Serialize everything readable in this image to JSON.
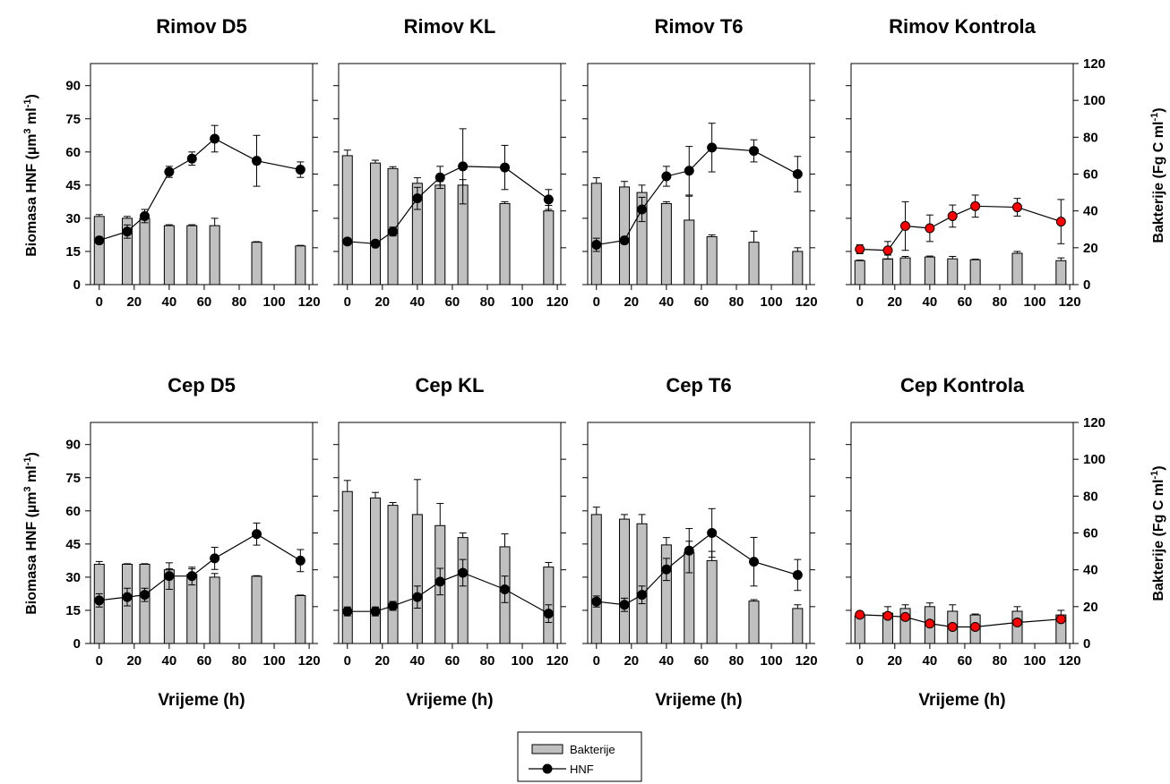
{
  "figure": {
    "left_axis_label": {
      "prefix": "Biomasa HNF (µm",
      "sup1": "3",
      "mid": " ml",
      "sup2": "-1",
      "suffix": ")"
    },
    "right_axis_label": {
      "prefix": "Bakterije (Fg C ml",
      "sup": "-1",
      "suffix": ")"
    },
    "legend": {
      "bacteria_label": "Bakterije",
      "hnf_label": "HNF"
    },
    "colors": {
      "bar_fill": "#c0c0c0",
      "hnf_marker_dark": "#000000",
      "hnf_marker_red": "#ff0000"
    }
  },
  "chart_data": [
    {
      "title": "Rimov D5",
      "type": "bar+line",
      "xlabel": "",
      "x_ticks": [
        0,
        20,
        40,
        60,
        80,
        100,
        120
      ],
      "xlim": [
        -5,
        122
      ],
      "left_ylim": [
        0,
        100
      ],
      "left_ticks": [
        0,
        15,
        30,
        45,
        60,
        75,
        90
      ],
      "right_ylim": [
        0,
        120
      ],
      "right_ticks": [
        0,
        20,
        40,
        60,
        80,
        100,
        120
      ],
      "show_left_ticks": true,
      "show_right_ticks": false,
      "marker_color": "#000000",
      "bacteria": [
        {
          "x": 0,
          "y": 37,
          "err": 1
        },
        {
          "x": 16,
          "y": 36,
          "err": 1
        },
        {
          "x": 26,
          "y": 36,
          "err": 1
        },
        {
          "x": 40,
          "y": 32,
          "err": 0.5
        },
        {
          "x": 53,
          "y": 32,
          "err": 0.5
        },
        {
          "x": 66,
          "y": 32,
          "err": 4
        },
        {
          "x": 90,
          "y": 23,
          "err": 0.3
        },
        {
          "x": 115,
          "y": 21,
          "err": 0.3
        }
      ],
      "hnf": [
        {
          "x": 0,
          "y": 20,
          "err": 1.5
        },
        {
          "x": 16,
          "y": 24,
          "err": 3
        },
        {
          "x": 26,
          "y": 31,
          "err": 3
        },
        {
          "x": 40,
          "y": 51,
          "err": 2.5
        },
        {
          "x": 53,
          "y": 57,
          "err": 3
        },
        {
          "x": 66,
          "y": 66,
          "err": 6
        },
        {
          "x": 90,
          "y": 56,
          "err": 11.5
        },
        {
          "x": 115,
          "y": 52,
          "err": 3.5
        }
      ]
    },
    {
      "title": "Rimov KL",
      "type": "bar+line",
      "xlabel": "",
      "x_ticks": [
        0,
        20,
        40,
        60,
        80,
        100,
        120
      ],
      "xlim": [
        -5,
        122
      ],
      "left_ylim": [
        0,
        100
      ],
      "left_ticks": [
        0,
        15,
        30,
        45,
        60,
        75,
        90
      ],
      "right_ylim": [
        0,
        120
      ],
      "right_ticks": [
        0,
        20,
        40,
        60,
        80,
        100,
        120
      ],
      "show_left_ticks": false,
      "show_right_ticks": false,
      "marker_color": "#000000",
      "bacteria": [
        {
          "x": 0,
          "y": 70,
          "err": 3
        },
        {
          "x": 16,
          "y": 66,
          "err": 1.5
        },
        {
          "x": 26,
          "y": 63,
          "err": 1
        },
        {
          "x": 40,
          "y": 55,
          "err": 3
        },
        {
          "x": 53,
          "y": 54,
          "err": 2
        },
        {
          "x": 66,
          "y": 54,
          "err": 3
        },
        {
          "x": 90,
          "y": 44,
          "err": 1
        },
        {
          "x": 115,
          "y": 40,
          "err": 3
        }
      ],
      "hnf": [
        {
          "x": 0,
          "y": 19.5,
          "err": 0.3
        },
        {
          "x": 16,
          "y": 18.5,
          "err": 0.3
        },
        {
          "x": 26,
          "y": 24,
          "err": 2
        },
        {
          "x": 40,
          "y": 39,
          "err": 5
        },
        {
          "x": 53,
          "y": 48.5,
          "err": 5
        },
        {
          "x": 66,
          "y": 53.5,
          "err": 17
        },
        {
          "x": 90,
          "y": 53,
          "err": 10
        },
        {
          "x": 115,
          "y": 38.5,
          "err": 4.5
        }
      ]
    },
    {
      "title": "Rimov T6",
      "type": "bar+line",
      "xlabel": "",
      "x_ticks": [
        0,
        20,
        40,
        60,
        80,
        100,
        120
      ],
      "xlim": [
        -5,
        122
      ],
      "left_ylim": [
        0,
        100
      ],
      "left_ticks": [
        0,
        15,
        30,
        45,
        60,
        75,
        90
      ],
      "right_ylim": [
        0,
        120
      ],
      "right_ticks": [
        0,
        20,
        40,
        60,
        80,
        100,
        120
      ],
      "show_left_ticks": false,
      "show_right_ticks": false,
      "marker_color": "#000000",
      "bacteria": [
        {
          "x": 0,
          "y": 55,
          "err": 3
        },
        {
          "x": 16,
          "y": 53,
          "err": 3
        },
        {
          "x": 26,
          "y": 50,
          "err": 4
        },
        {
          "x": 40,
          "y": 44,
          "err": 1
        },
        {
          "x": 53,
          "y": 35,
          "err": 13
        },
        {
          "x": 66,
          "y": 26,
          "err": 1
        },
        {
          "x": 90,
          "y": 23,
          "err": 6
        },
        {
          "x": 115,
          "y": 18,
          "err": 2
        }
      ],
      "hnf": [
        {
          "x": 0,
          "y": 18,
          "err": 3
        },
        {
          "x": 16,
          "y": 20,
          "err": 1.5
        },
        {
          "x": 26,
          "y": 34,
          "err": 5.5
        },
        {
          "x": 40,
          "y": 49,
          "err": 4.5
        },
        {
          "x": 53,
          "y": 51.5,
          "err": 11
        },
        {
          "x": 66,
          "y": 62,
          "err": 11
        },
        {
          "x": 90,
          "y": 60.5,
          "err": 5
        },
        {
          "x": 115,
          "y": 50,
          "err": 8
        }
      ]
    },
    {
      "title": "Rimov Kontrola",
      "type": "bar+line",
      "xlabel": "",
      "x_ticks": [
        0,
        20,
        40,
        60,
        80,
        100,
        120
      ],
      "xlim": [
        -5,
        122
      ],
      "left_ylim": [
        0,
        100
      ],
      "left_ticks": [
        0,
        15,
        30,
        45,
        60,
        75,
        90
      ],
      "right_ylim": [
        0,
        120
      ],
      "right_ticks": [
        0,
        20,
        40,
        60,
        80,
        100,
        120
      ],
      "show_left_ticks": false,
      "show_right_ticks": true,
      "marker_color": "#ff0000",
      "bacteria": [
        {
          "x": 0,
          "y": 13,
          "err": 0.3
        },
        {
          "x": 16,
          "y": 14,
          "err": 2
        },
        {
          "x": 26,
          "y": 14.5,
          "err": 0.8
        },
        {
          "x": 40,
          "y": 15,
          "err": 0.5
        },
        {
          "x": 53,
          "y": 14,
          "err": 1.3
        },
        {
          "x": 66,
          "y": 13.5,
          "err": 0.3
        },
        {
          "x": 90,
          "y": 17,
          "err": 1
        },
        {
          "x": 115,
          "y": 13,
          "err": 1.5
        }
      ],
      "hnf": [
        {
          "x": 0,
          "y": 16,
          "err": 2
        },
        {
          "x": 16,
          "y": 15.5,
          "err": 4
        },
        {
          "x": 26,
          "y": 26.5,
          "err": 11
        },
        {
          "x": 40,
          "y": 25.5,
          "err": 6
        },
        {
          "x": 53,
          "y": 31,
          "err": 5
        },
        {
          "x": 66,
          "y": 35.5,
          "err": 5
        },
        {
          "x": 90,
          "y": 35,
          "err": 4
        },
        {
          "x": 115,
          "y": 28.5,
          "err": 10
        }
      ]
    },
    {
      "title": "Cep  D5",
      "type": "bar+line",
      "xlabel": "Vrijeme (h)",
      "x_ticks": [
        0,
        20,
        40,
        60,
        80,
        100,
        120
      ],
      "xlim": [
        -5,
        122
      ],
      "left_ylim": [
        0,
        100
      ],
      "left_ticks": [
        0,
        15,
        30,
        45,
        60,
        75,
        90
      ],
      "right_ylim": [
        0,
        120
      ],
      "right_ticks": [
        0,
        20,
        40,
        60,
        80,
        100,
        120
      ],
      "show_left_ticks": true,
      "show_right_ticks": false,
      "marker_color": "#000000",
      "bacteria": [
        {
          "x": 0,
          "y": 43,
          "err": 1.5
        },
        {
          "x": 16,
          "y": 43,
          "err": 0.3
        },
        {
          "x": 26,
          "y": 43,
          "err": 0.3
        },
        {
          "x": 40,
          "y": 40,
          "err": 0.5
        },
        {
          "x": 53,
          "y": 37.5,
          "err": 3
        },
        {
          "x": 66,
          "y": 36,
          "err": 2
        },
        {
          "x": 90,
          "y": 36.5,
          "err": 0.3
        },
        {
          "x": 115,
          "y": 26,
          "err": 0.3
        }
      ],
      "hnf": [
        {
          "x": 0,
          "y": 19.5,
          "err": 3
        },
        {
          "x": 16,
          "y": 21,
          "err": 4
        },
        {
          "x": 26,
          "y": 22,
          "err": 3
        },
        {
          "x": 40,
          "y": 30.5,
          "err": 6
        },
        {
          "x": 53,
          "y": 30.5,
          "err": 4
        },
        {
          "x": 66,
          "y": 38.5,
          "err": 5
        },
        {
          "x": 90,
          "y": 49.5,
          "err": 5
        },
        {
          "x": 115,
          "y": 37.5,
          "err": 5
        }
      ]
    },
    {
      "title": "Cep KL",
      "type": "bar+line",
      "xlabel": "Vrijeme (h)",
      "x_ticks": [
        0,
        20,
        40,
        60,
        80,
        100,
        120
      ],
      "xlim": [
        -5,
        122
      ],
      "left_ylim": [
        0,
        100
      ],
      "left_ticks": [
        0,
        15,
        30,
        45,
        60,
        75,
        90
      ],
      "right_ylim": [
        0,
        120
      ],
      "right_ticks": [
        0,
        20,
        40,
        60,
        80,
        100,
        120
      ],
      "show_left_ticks": false,
      "show_right_ticks": false,
      "marker_color": "#000000",
      "bacteria": [
        {
          "x": 0,
          "y": 82.5,
          "err": 6
        },
        {
          "x": 16,
          "y": 79,
          "err": 3
        },
        {
          "x": 26,
          "y": 75,
          "err": 1.5
        },
        {
          "x": 40,
          "y": 70,
          "err": 19
        },
        {
          "x": 53,
          "y": 64,
          "err": 12
        },
        {
          "x": 66,
          "y": 57.5,
          "err": 2.5
        },
        {
          "x": 90,
          "y": 52.5,
          "err": 7
        },
        {
          "x": 115,
          "y": 41.5,
          "err": 2.5
        }
      ],
      "hnf": [
        {
          "x": 0,
          "y": 14.5,
          "err": 2
        },
        {
          "x": 16,
          "y": 14.5,
          "err": 2
        },
        {
          "x": 26,
          "y": 17,
          "err": 2
        },
        {
          "x": 40,
          "y": 21,
          "err": 5
        },
        {
          "x": 53,
          "y": 28,
          "err": 6
        },
        {
          "x": 66,
          "y": 32,
          "err": 6
        },
        {
          "x": 90,
          "y": 24.5,
          "err": 6
        },
        {
          "x": 115,
          "y": 13.5,
          "err": 4
        }
      ]
    },
    {
      "title": "Cep T6",
      "type": "bar+line",
      "xlabel": "Vrijeme (h)",
      "x_ticks": [
        0,
        20,
        40,
        60,
        80,
        100,
        120
      ],
      "xlim": [
        -5,
        122
      ],
      "left_ylim": [
        0,
        100
      ],
      "left_ticks": [
        0,
        15,
        30,
        45,
        60,
        75,
        90
      ],
      "right_ylim": [
        0,
        120
      ],
      "right_ticks": [
        0,
        20,
        40,
        60,
        80,
        100,
        120
      ],
      "show_left_ticks": false,
      "show_right_ticks": false,
      "marker_color": "#000000",
      "bacteria": [
        {
          "x": 0,
          "y": 70,
          "err": 4
        },
        {
          "x": 16,
          "y": 67.5,
          "err": 2.5
        },
        {
          "x": 26,
          "y": 65,
          "err": 5
        },
        {
          "x": 40,
          "y": 53.5,
          "err": 4
        },
        {
          "x": 53,
          "y": 49.5,
          "err": 6
        },
        {
          "x": 66,
          "y": 45,
          "err": 5
        },
        {
          "x": 90,
          "y": 23,
          "err": 0.8
        },
        {
          "x": 115,
          "y": 19,
          "err": 2
        }
      ],
      "hnf": [
        {
          "x": 0,
          "y": 19,
          "err": 2.5
        },
        {
          "x": 16,
          "y": 17.5,
          "err": 3
        },
        {
          "x": 26,
          "y": 22,
          "err": 4
        },
        {
          "x": 40,
          "y": 33.5,
          "err": 5
        },
        {
          "x": 53,
          "y": 42,
          "err": 10
        },
        {
          "x": 66,
          "y": 50,
          "err": 11
        },
        {
          "x": 90,
          "y": 37,
          "err": 11
        },
        {
          "x": 115,
          "y": 31,
          "err": 7
        }
      ]
    },
    {
      "title": "Cep Kontrola",
      "type": "bar+line",
      "xlabel": "Vrijeme (h)",
      "x_ticks": [
        0,
        20,
        40,
        60,
        80,
        100,
        120
      ],
      "xlim": [
        -5,
        122
      ],
      "left_ylim": [
        0,
        100
      ],
      "left_ticks": [
        0,
        15,
        30,
        45,
        60,
        75,
        90
      ],
      "right_ylim": [
        0,
        120
      ],
      "right_ticks": [
        0,
        20,
        40,
        60,
        80,
        100,
        120
      ],
      "show_left_ticks": false,
      "show_right_ticks": true,
      "marker_color": "#ff0000",
      "bacteria": [
        {
          "x": 0,
          "y": 15,
          "err": 2
        },
        {
          "x": 16,
          "y": 16.5,
          "err": 3.5
        },
        {
          "x": 26,
          "y": 19,
          "err": 2
        },
        {
          "x": 40,
          "y": 20,
          "err": 2
        },
        {
          "x": 53,
          "y": 17.5,
          "err": 3.5
        },
        {
          "x": 66,
          "y": 15.5,
          "err": 0.5
        },
        {
          "x": 90,
          "y": 17.5,
          "err": 2.5
        },
        {
          "x": 115,
          "y": 15.5,
          "err": 2.5
        }
      ],
      "hnf": [
        {
          "x": 0,
          "y": 13,
          "err": 0.5
        },
        {
          "x": 16,
          "y": 12.5,
          "err": 0.5
        },
        {
          "x": 26,
          "y": 12,
          "err": 0.5
        },
        {
          "x": 40,
          "y": 9,
          "err": 0.5
        },
        {
          "x": 53,
          "y": 7.5,
          "err": 0.5
        },
        {
          "x": 66,
          "y": 7.5,
          "err": 0.5
        },
        {
          "x": 90,
          "y": 9.5,
          "err": 0.5
        },
        {
          "x": 115,
          "y": 11,
          "err": 0.5
        }
      ]
    }
  ]
}
